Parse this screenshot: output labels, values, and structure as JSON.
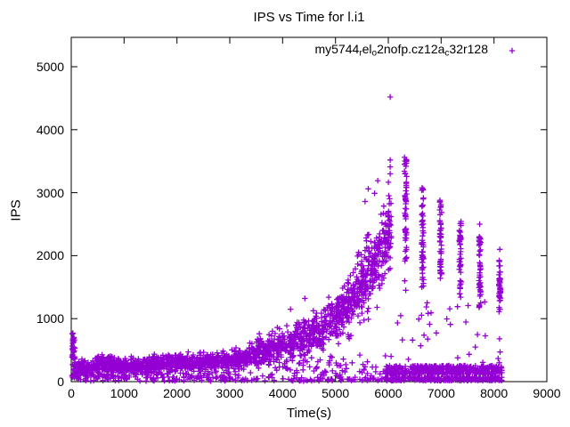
{
  "title": "IPS vs Time for l.i1",
  "colors": {
    "marker": "#9400d3",
    "text": "#000000",
    "background": "#ffffff",
    "axis": "#000000"
  },
  "legend": {
    "label_plain": "my5744_rel_o2nofp.cz12a_c32r128",
    "segments": [
      {
        "text": "my5744",
        "sub": false
      },
      {
        "text": "r",
        "sub": true
      },
      {
        "text": "el",
        "sub": false
      },
      {
        "text": "o",
        "sub": true
      },
      {
        "text": "2nofp.cz12a",
        "sub": false
      },
      {
        "text": "c",
        "sub": true
      },
      {
        "text": "32r128",
        "sub": false
      }
    ],
    "marker": "plus"
  },
  "chart_data": {
    "type": "scatter",
    "title": "IPS vs Time for l.i1",
    "xlabel": "Time(s)",
    "ylabel": "IPS",
    "xlim": [
      0,
      9000
    ],
    "ylim": [
      0,
      5466
    ],
    "x_ticks": [
      0,
      1000,
      2000,
      3000,
      4000,
      5000,
      6000,
      7000,
      8000,
      9000
    ],
    "y_ticks": [
      0,
      1000,
      2000,
      3000,
      4000,
      5000
    ],
    "grid": false,
    "legend_position": "top-center-inside",
    "series": [
      {
        "name": "my5744_rel_o2nofp.cz12a_c32r128",
        "marker": "plus",
        "color": "#9400d3",
        "summary": "Dense band ~150-350 IPS from t=0-3000 (startup spike to ~760 at t~30, small bump ~400 near t=650), rising to ~1000 by t=5000, climbing steeply to ~2400-3000 by t=5900, peak outlier 4520 at t~6040; then periodic vertical clusters at t~6330 (1850-3560), 6650 (1480-3080), 6990 (1620-2890), 7360 (1310-2550), 7730 (1160-2310), 8110 (1120-1930, outlier 2100); dense low band 115-255 IPS plus near-zero dots from t~5950-8150.",
        "explicit_points": [
          [
            30,
            770
          ],
          [
            6036,
            4520
          ],
          [
            6036,
            3520
          ],
          [
            6036,
            3410
          ],
          [
            6036,
            3300
          ],
          [
            6306,
            3560
          ],
          [
            6306,
            3450
          ],
          [
            6306,
            3340
          ],
          [
            5800,
            3190
          ],
          [
            6002,
            3165
          ],
          [
            6340,
            3165
          ],
          [
            5740,
            2990
          ],
          [
            5620,
            3060
          ],
          [
            5560,
            2860
          ],
          [
            7730,
            2500
          ],
          [
            8110,
            2100
          ],
          [
            8105,
            680
          ],
          [
            8115,
            470
          ],
          [
            8100,
            300
          ],
          [
            6310,
            1600
          ],
          [
            6330,
            1450
          ],
          [
            4150,
            1150
          ],
          [
            4420,
            1320
          ],
          [
            3560,
            760
          ]
        ],
        "generated_segments": [
          {
            "kind": "uniform",
            "t": [
              15,
              75
            ],
            "y": [
              60,
              760
            ],
            "n": 40
          },
          {
            "kind": "band",
            "t": [
              60,
              3000
            ],
            "center": [
              205,
              335
            ],
            "curve": "linear",
            "sigma": [
              55,
              70
            ],
            "n": 800
          },
          {
            "kind": "band",
            "t": [
              480,
              820
            ],
            "center": [
              320,
              330
            ],
            "curve": "linear",
            "sigma": [
              40,
              40
            ],
            "n": 65
          },
          {
            "kind": "band",
            "t": [
              3000,
              5000
            ],
            "center": [
              335,
              1000
            ],
            "curve": "exp",
            "sigma": [
              70,
              180
            ],
            "n": 540
          },
          {
            "kind": "band",
            "t": [
              5000,
              6060
            ],
            "center": [
              1000,
              2400
            ],
            "curve": "exp",
            "sigma": [
              180,
              320
            ],
            "n": 430
          },
          {
            "kind": "uniform",
            "t": [
              100,
              3000
            ],
            "y": [
              60,
              170
            ],
            "n": 90
          },
          {
            "kind": "uniform",
            "t": [
              3000,
              6060
            ],
            "y": [
              90,
              430
            ],
            "n": 110
          },
          {
            "kind": "column",
            "t": 6330,
            "t_jitter": 18,
            "y": [
              1850,
              3560
            ],
            "n": 52
          },
          {
            "kind": "column",
            "t": 6650,
            "t_jitter": 18,
            "y": [
              1480,
              3080
            ],
            "n": 52
          },
          {
            "kind": "column",
            "t": 6990,
            "t_jitter": 18,
            "y": [
              1620,
              2890
            ],
            "n": 48
          },
          {
            "kind": "column",
            "t": 7360,
            "t_jitter": 18,
            "y": [
              1310,
              2550
            ],
            "n": 46
          },
          {
            "kind": "column",
            "t": 7730,
            "t_jitter": 18,
            "y": [
              1160,
              2310
            ],
            "n": 44
          },
          {
            "kind": "column",
            "t": 8110,
            "t_jitter": 18,
            "y": [
              1120,
              1930
            ],
            "n": 40
          },
          {
            "kind": "uniform",
            "t": [
              5950,
              8150
            ],
            "y": [
              115,
              255
            ],
            "n": 420
          },
          {
            "kind": "uniform",
            "t": [
              5950,
              8150
            ],
            "y": [
              15,
              75
            ],
            "n": 260
          },
          {
            "kind": "uniform",
            "t": [
              80,
              5950
            ],
            "y": [
              8,
              75
            ],
            "n": 150
          },
          {
            "kind": "uniform",
            "t": [
              6100,
              8150
            ],
            "y": [
              300,
              1300
            ],
            "n": 32
          }
        ]
      }
    ]
  }
}
